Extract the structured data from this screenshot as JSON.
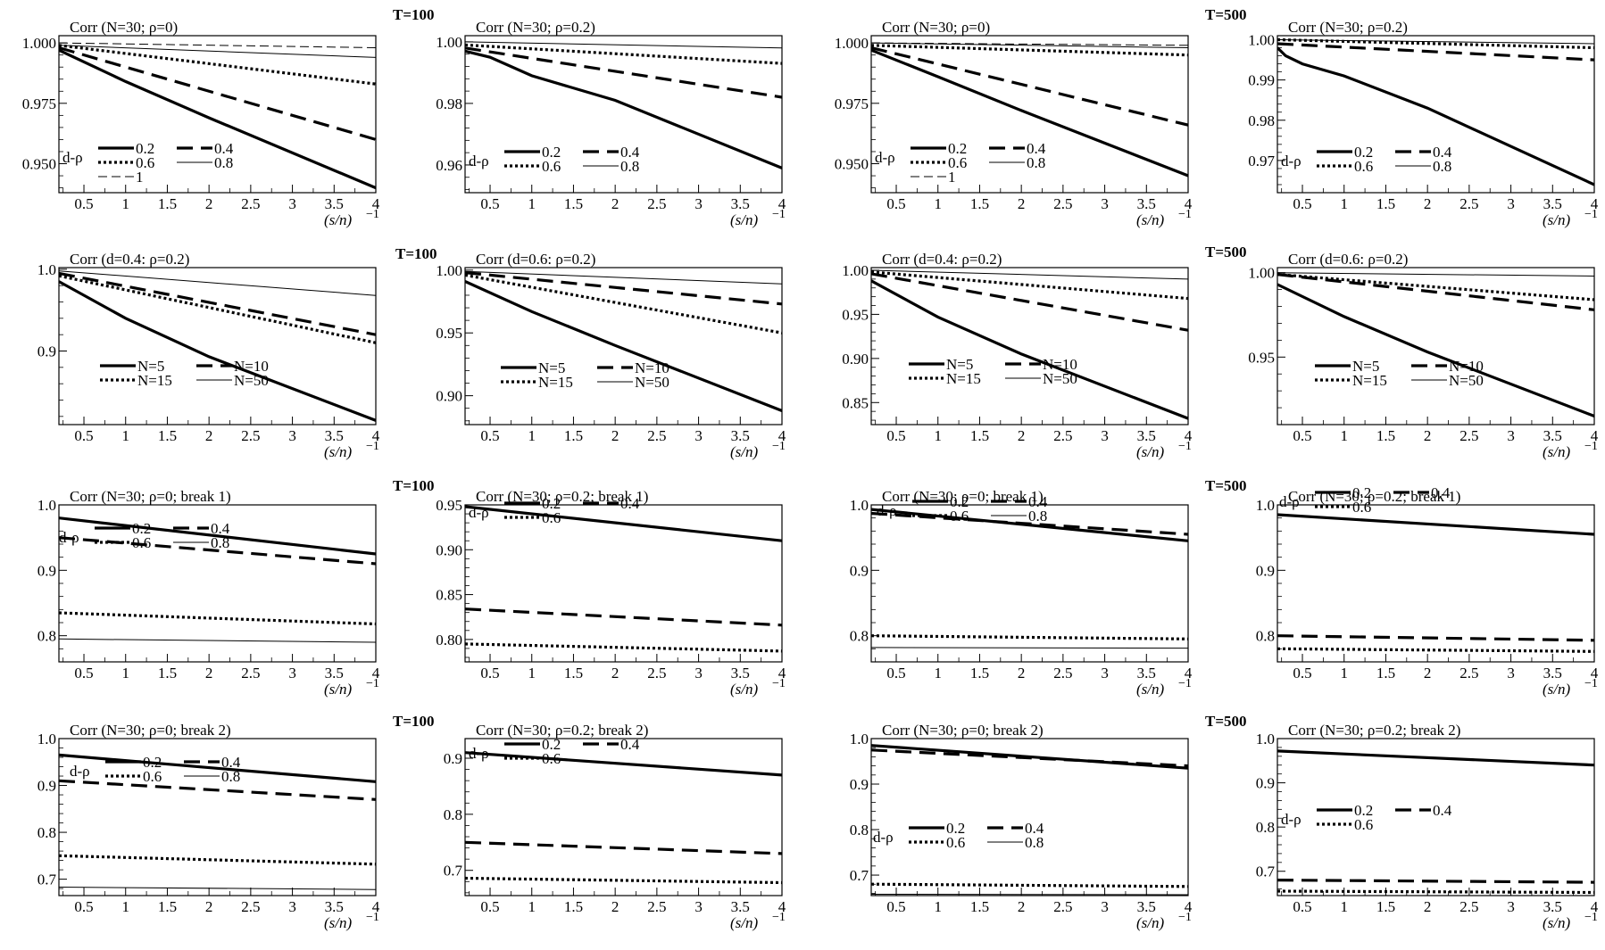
{
  "figure": {
    "t_labels": [
      "T=100",
      "T=500"
    ],
    "x_ticks": [
      0.5,
      1,
      1.5,
      2,
      2.5,
      3,
      3.5,
      4
    ],
    "x_axis_label": "(s/n)",
    "x_axis_exponent": "−1",
    "legend_prefix": "d-ρ"
  },
  "chart_data": [
    {
      "type": "line",
      "title": "Corr (N=30; ρ=0)",
      "xlabel": "(s/n)^−1",
      "xlim": [
        0.2,
        4
      ],
      "ylim": [
        0.938,
        1.003
      ],
      "yticks": [
        0.95,
        0.975,
        1.0
      ],
      "ytick_labels": [
        "0.950",
        "0.975",
        "1.000"
      ],
      "legend_prefix": "d-ρ",
      "series": [
        {
          "name": "0.2",
          "style": "solid",
          "x": [
            0.2,
            1,
            2,
            4
          ],
          "y": [
            0.997,
            0.984,
            0.969,
            0.94
          ]
        },
        {
          "name": "0.4",
          "style": "dash",
          "x": [
            0.2,
            4
          ],
          "y": [
            0.998,
            0.96
          ]
        },
        {
          "name": "0.6",
          "style": "dot",
          "x": [
            0.2,
            4
          ],
          "y": [
            0.999,
            0.983
          ]
        },
        {
          "name": "0.8",
          "style": "thin",
          "x": [
            0.2,
            4
          ],
          "y": [
            0.999,
            0.994
          ]
        },
        {
          "name": "1",
          "style": "thindash",
          "x": [
            0.2,
            4
          ],
          "y": [
            1.0,
            0.998
          ]
        }
      ]
    },
    {
      "type": "line",
      "title": "Corr (N=30; ρ=0.2)",
      "xlabel": "(s/n)^−1",
      "xlim": [
        0.2,
        4
      ],
      "ylim": [
        0.951,
        1.002
      ],
      "yticks": [
        0.96,
        0.98,
        1.0
      ],
      "ytick_labels": [
        "0.96",
        "0.98",
        "1.00"
      ],
      "legend_prefix": "d-ρ",
      "series": [
        {
          "name": "0.2",
          "style": "solid",
          "x": [
            0.2,
            0.5,
            1,
            2,
            4
          ],
          "y": [
            0.997,
            0.995,
            0.989,
            0.981,
            0.959
          ]
        },
        {
          "name": "0.4",
          "style": "dash",
          "x": [
            0.2,
            4
          ],
          "y": [
            0.998,
            0.982
          ]
        },
        {
          "name": "0.6",
          "style": "dot",
          "x": [
            0.2,
            4
          ],
          "y": [
            0.999,
            0.993
          ]
        },
        {
          "name": "0.8",
          "style": "thin",
          "x": [
            0.2,
            4
          ],
          "y": [
            1.0,
            0.998
          ]
        }
      ]
    },
    {
      "type": "line",
      "title": "Corr (N=30; ρ=0)",
      "xlabel": "(s/n)^−1",
      "xlim": [
        0.2,
        4
      ],
      "ylim": [
        0.938,
        1.003
      ],
      "yticks": [
        0.95,
        0.975,
        1.0
      ],
      "ytick_labels": [
        "0.950",
        "0.975",
        "1.000"
      ],
      "legend_prefix": "d-ρ",
      "series": [
        {
          "name": "0.2",
          "style": "solid",
          "x": [
            0.2,
            1,
            2,
            4
          ],
          "y": [
            0.997,
            0.986,
            0.972,
            0.945
          ]
        },
        {
          "name": "0.4",
          "style": "dash",
          "x": [
            0.2,
            4
          ],
          "y": [
            0.998,
            0.966
          ]
        },
        {
          "name": "0.6",
          "style": "dot",
          "x": [
            0.2,
            4
          ],
          "y": [
            0.999,
            0.995
          ]
        },
        {
          "name": "0.8",
          "style": "thin",
          "x": [
            0.2,
            4
          ],
          "y": [
            1.0,
            0.998
          ]
        },
        {
          "name": "1",
          "style": "thindash",
          "x": [
            0.2,
            4
          ],
          "y": [
            1.0,
            0.999
          ]
        }
      ]
    },
    {
      "type": "line",
      "title": "Corr (N=30; ρ=0.2)",
      "xlabel": "(s/n)^−1",
      "xlim": [
        0.2,
        4
      ],
      "ylim": [
        0.962,
        1.001
      ],
      "yticks": [
        0.97,
        0.98,
        0.99,
        1.0
      ],
      "ytick_labels": [
        "0.97",
        "0.98",
        "0.99",
        "1.00"
      ],
      "legend_prefix": "d-ρ",
      "series": [
        {
          "name": "0.2",
          "style": "solid",
          "x": [
            0.2,
            0.3,
            0.5,
            1,
            2,
            4
          ],
          "y": [
            0.998,
            0.996,
            0.994,
            0.991,
            0.983,
            0.964
          ]
        },
        {
          "name": "0.4",
          "style": "dash",
          "x": [
            0.2,
            4
          ],
          "y": [
            0.999,
            0.995
          ]
        },
        {
          "name": "0.6",
          "style": "dot",
          "x": [
            0.2,
            4
          ],
          "y": [
            1.0,
            0.998
          ]
        },
        {
          "name": "0.8",
          "style": "thin",
          "x": [
            0.2,
            4
          ],
          "y": [
            1.0,
            0.999
          ]
        }
      ]
    },
    {
      "type": "line",
      "title": "Corr (d=0.4: ρ=0.2)",
      "xlabel": "(s/n)^−1",
      "xlim": [
        0.2,
        4
      ],
      "ylim": [
        0.81,
        1.002
      ],
      "yticks": [
        0.9,
        1.0
      ],
      "ytick_labels": [
        "0.9",
        "1.0"
      ],
      "series": [
        {
          "name": "N=5",
          "style": "solid",
          "x": [
            0.2,
            1,
            2,
            4
          ],
          "y": [
            0.985,
            0.94,
            0.893,
            0.815
          ]
        },
        {
          "name": "N=10",
          "style": "dash",
          "x": [
            0.2,
            4
          ],
          "y": [
            0.995,
            0.92
          ]
        },
        {
          "name": "N=15",
          "style": "dot",
          "x": [
            0.2,
            4
          ],
          "y": [
            0.992,
            0.91
          ]
        },
        {
          "name": "N=50",
          "style": "thin",
          "x": [
            0.2,
            4
          ],
          "y": [
            0.998,
            0.968
          ]
        }
      ]
    },
    {
      "type": "line",
      "title": "Corr (d=0.6: ρ=0.2)",
      "xlabel": "(s/n)^−1",
      "xlim": [
        0.2,
        4
      ],
      "ylim": [
        0.877,
        1.002
      ],
      "yticks": [
        0.9,
        0.95,
        1.0
      ],
      "ytick_labels": [
        "0.90",
        "0.95",
        "1.00"
      ],
      "series": [
        {
          "name": "N=5",
          "style": "solid",
          "x": [
            0.2,
            1,
            2,
            4
          ],
          "y": [
            0.991,
            0.967,
            0.94,
            0.888
          ]
        },
        {
          "name": "N=10",
          "style": "dash",
          "x": [
            0.2,
            4
          ],
          "y": [
            0.998,
            0.973
          ]
        },
        {
          "name": "N=15",
          "style": "dot",
          "x": [
            0.2,
            4
          ],
          "y": [
            0.996,
            0.95
          ]
        },
        {
          "name": "N=50",
          "style": "thin",
          "x": [
            0.2,
            4
          ],
          "y": [
            0.999,
            0.989
          ]
        }
      ]
    },
    {
      "type": "line",
      "title": "Corr (d=0.4: ρ=0.2)",
      "xlabel": "(s/n)^−1",
      "xlim": [
        0.2,
        4
      ],
      "ylim": [
        0.825,
        1.003
      ],
      "yticks": [
        0.85,
        0.9,
        0.95,
        1.0
      ],
      "ytick_labels": [
        "0.85",
        "0.90",
        "0.95",
        "1.00"
      ],
      "series": [
        {
          "name": "N=5",
          "style": "solid",
          "x": [
            0.2,
            1,
            2,
            4
          ],
          "y": [
            0.988,
            0.947,
            0.905,
            0.832
          ]
        },
        {
          "name": "N=10",
          "style": "dash",
          "x": [
            0.2,
            4
          ],
          "y": [
            0.996,
            0.932
          ]
        },
        {
          "name": "N=15",
          "style": "dot",
          "x": [
            0.2,
            4
          ],
          "y": [
            0.998,
            0.968
          ]
        },
        {
          "name": "N=50",
          "style": "thin",
          "x": [
            0.2,
            4
          ],
          "y": [
            1.0,
            0.99
          ]
        }
      ]
    },
    {
      "type": "line",
      "title": "Corr (d=0.6: ρ=0.2)",
      "xlabel": "(s/n)^−1",
      "xlim": [
        0.2,
        4
      ],
      "ylim": [
        0.91,
        1.003
      ],
      "yticks": [
        0.95,
        1.0
      ],
      "ytick_labels": [
        "0.95",
        "1.00"
      ],
      "series": [
        {
          "name": "N=5",
          "style": "solid",
          "x": [
            0.2,
            1,
            2,
            4
          ],
          "y": [
            0.993,
            0.974,
            0.953,
            0.915
          ]
        },
        {
          "name": "N=10",
          "style": "dash",
          "x": [
            0.2,
            4
          ],
          "y": [
            0.999,
            0.978
          ]
        },
        {
          "name": "N=15",
          "style": "dot",
          "x": [
            0.2,
            4
          ],
          "y": [
            0.999,
            0.984
          ]
        },
        {
          "name": "N=50",
          "style": "thin",
          "x": [
            0.2,
            4
          ],
          "y": [
            1.0,
            0.998
          ]
        }
      ]
    },
    {
      "type": "line",
      "title": "Corr (N=30; ρ=0; break 1)",
      "xlabel": "(s/n)^−1",
      "xlim": [
        0.2,
        4
      ],
      "ylim": [
        0.76,
        1.0
      ],
      "yticks": [
        0.8,
        0.9,
        1.0
      ],
      "ytick_labels": [
        "0.8",
        "0.9",
        "1.0"
      ],
      "legend_prefix": "d-ρ",
      "series": [
        {
          "name": "0.2",
          "style": "solid",
          "x": [
            0.2,
            4
          ],
          "y": [
            0.98,
            0.925
          ]
        },
        {
          "name": "0.4",
          "style": "dash",
          "x": [
            0.2,
            4
          ],
          "y": [
            0.95,
            0.91
          ]
        },
        {
          "name": "0.6",
          "style": "dot",
          "x": [
            0.2,
            4
          ],
          "y": [
            0.835,
            0.818
          ]
        },
        {
          "name": "0.8",
          "style": "thin",
          "x": [
            0.2,
            4
          ],
          "y": [
            0.795,
            0.79
          ]
        }
      ]
    },
    {
      "type": "line",
      "title": "Corr (N=30; ρ=0.2; break 1)",
      "xlabel": "(s/n)^−1",
      "xlim": [
        0.2,
        4
      ],
      "ylim": [
        0.775,
        0.95
      ],
      "yticks": [
        0.8,
        0.85,
        0.9,
        0.95
      ],
      "ytick_labels": [
        "0.80",
        "0.85",
        "0.90",
        "0.95"
      ],
      "legend_prefix": "d-ρ",
      "series": [
        {
          "name": "0.2",
          "style": "solid",
          "x": [
            0.2,
            4
          ],
          "y": [
            0.948,
            0.91
          ]
        },
        {
          "name": "0.4",
          "style": "dash",
          "x": [
            0.2,
            4
          ],
          "y": [
            0.834,
            0.816
          ]
        },
        {
          "name": "0.6",
          "style": "dot",
          "x": [
            0.2,
            4
          ],
          "y": [
            0.795,
            0.787
          ]
        }
      ]
    },
    {
      "type": "line",
      "title": "Corr (N=30; ρ=0; break 1)",
      "xlabel": "(s/n)^−1",
      "xlim": [
        0.2,
        4
      ],
      "ylim": [
        0.76,
        1.0
      ],
      "yticks": [
        0.8,
        0.9,
        1.0
      ],
      "ytick_labels": [
        "0.8",
        "0.9",
        "1.0"
      ],
      "legend_prefix": "d-ρ",
      "series": [
        {
          "name": "0.2",
          "style": "solid",
          "x": [
            0.2,
            4
          ],
          "y": [
            0.993,
            0.945
          ]
        },
        {
          "name": "0.4",
          "style": "dash",
          "x": [
            0.2,
            4
          ],
          "y": [
            0.987,
            0.955
          ]
        },
        {
          "name": "0.6",
          "style": "dot",
          "x": [
            0.2,
            4
          ],
          "y": [
            0.8,
            0.795
          ]
        },
        {
          "name": "0.8",
          "style": "thin",
          "x": [
            0.2,
            4
          ],
          "y": [
            0.782,
            0.781
          ]
        }
      ]
    },
    {
      "type": "line",
      "title": "Corr (N=30; ρ=0.2; break 1)",
      "xlabel": "(s/n)^−1",
      "xlim": [
        0.2,
        4
      ],
      "ylim": [
        0.76,
        1.0
      ],
      "yticks": [
        0.8,
        0.9,
        1.0
      ],
      "ytick_labels": [
        "0.8",
        "0.9",
        "1.0"
      ],
      "legend_prefix": "d-ρ",
      "series": [
        {
          "name": "0.2",
          "style": "solid",
          "x": [
            0.2,
            4
          ],
          "y": [
            0.985,
            0.955
          ]
        },
        {
          "name": "0.4",
          "style": "dash",
          "x": [
            0.2,
            4
          ],
          "y": [
            0.8,
            0.793
          ]
        },
        {
          "name": "0.6",
          "style": "dot",
          "x": [
            0.2,
            4
          ],
          "y": [
            0.78,
            0.776
          ]
        }
      ]
    },
    {
      "type": "line",
      "title": "Corr (N=30; ρ=0; break 2)",
      "xlabel": "(s/n)^−1",
      "xlim": [
        0.2,
        4
      ],
      "ylim": [
        0.665,
        1.0
      ],
      "yticks": [
        0.7,
        0.8,
        0.9,
        1.0
      ],
      "ytick_labels": [
        "0.7",
        "0.8",
        "0.9",
        "1.0"
      ],
      "legend_prefix": "d-ρ",
      "series": [
        {
          "name": "0.2",
          "style": "solid",
          "x": [
            0.2,
            4
          ],
          "y": [
            0.965,
            0.908
          ]
        },
        {
          "name": "0.4",
          "style": "dash",
          "x": [
            0.2,
            4
          ],
          "y": [
            0.91,
            0.87
          ]
        },
        {
          "name": "0.6",
          "style": "dot",
          "x": [
            0.2,
            4
          ],
          "y": [
            0.75,
            0.732
          ]
        },
        {
          "name": "0.8",
          "style": "thin",
          "x": [
            0.2,
            4
          ],
          "y": [
            0.683,
            0.678
          ]
        }
      ]
    },
    {
      "type": "line",
      "title": "Corr (N=30; ρ=0.2; break 2)",
      "xlabel": "(s/n)^−1",
      "xlim": [
        0.2,
        4
      ],
      "ylim": [
        0.655,
        0.935
      ],
      "yticks": [
        0.7,
        0.8,
        0.9
      ],
      "ytick_labels": [
        "0.7",
        "0.8",
        "0.9"
      ],
      "legend_prefix": "d-ρ",
      "series": [
        {
          "name": "0.2",
          "style": "solid",
          "x": [
            0.2,
            4
          ],
          "y": [
            0.91,
            0.87
          ]
        },
        {
          "name": "0.4",
          "style": "dash",
          "x": [
            0.2,
            4
          ],
          "y": [
            0.75,
            0.73
          ]
        },
        {
          "name": "0.6",
          "style": "dot",
          "x": [
            0.2,
            4
          ],
          "y": [
            0.686,
            0.678
          ]
        }
      ]
    },
    {
      "type": "line",
      "title": "Corr (N=30; ρ=0; break 2)",
      "xlabel": "(s/n)^−1",
      "xlim": [
        0.2,
        4
      ],
      "ylim": [
        0.655,
        1.0
      ],
      "yticks": [
        0.7,
        0.8,
        0.9,
        1.0
      ],
      "ytick_labels": [
        "0.7",
        "0.8",
        "0.9",
        "1.0"
      ],
      "legend_prefix": "d-ρ",
      "series": [
        {
          "name": "0.2",
          "style": "solid",
          "x": [
            0.2,
            4
          ],
          "y": [
            0.985,
            0.935
          ]
        },
        {
          "name": "0.4",
          "style": "dash",
          "x": [
            0.2,
            4
          ],
          "y": [
            0.975,
            0.94
          ]
        },
        {
          "name": "0.6",
          "style": "dot",
          "x": [
            0.2,
            4
          ],
          "y": [
            0.68,
            0.675
          ]
        },
        {
          "name": "0.8",
          "style": "thin",
          "x": [
            0.2,
            4
          ],
          "y": [
            0.658,
            0.657
          ]
        }
      ]
    },
    {
      "type": "line",
      "title": "Corr (N=30; ρ=0.2; break 2)",
      "xlabel": "(s/n)^−1",
      "xlim": [
        0.2,
        4
      ],
      "ylim": [
        0.645,
        1.0
      ],
      "yticks": [
        0.7,
        0.8,
        0.9,
        1.0
      ],
      "ytick_labels": [
        "0.7",
        "0.8",
        "0.9",
        "1.0"
      ],
      "legend_prefix": "d-ρ",
      "series": [
        {
          "name": "0.2",
          "style": "solid",
          "x": [
            0.2,
            4
          ],
          "y": [
            0.972,
            0.94
          ]
        },
        {
          "name": "0.4",
          "style": "dash",
          "x": [
            0.2,
            4
          ],
          "y": [
            0.68,
            0.675
          ]
        },
        {
          "name": "0.6",
          "style": "dot",
          "x": [
            0.2,
            4
          ],
          "y": [
            0.655,
            0.652
          ]
        }
      ]
    }
  ]
}
